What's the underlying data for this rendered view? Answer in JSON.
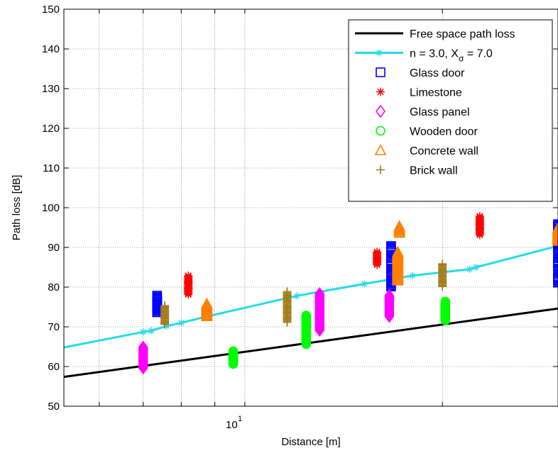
{
  "chart_data": {
    "type": "scatter",
    "xlabel": "Distance [m]",
    "ylabel": "Path loss [dB]",
    "x_scale": "log",
    "xlim": [
      5.3,
      30
    ],
    "ylim": [
      50,
      150
    ],
    "x_tick_label": {
      "base": "10",
      "exponent": "1",
      "value": 10
    },
    "y_ticks": [
      50,
      60,
      70,
      80,
      90,
      100,
      110,
      120,
      130,
      140,
      150
    ],
    "grid": true,
    "legend_position": "top-right",
    "lines": [
      {
        "name": "Free space path loss",
        "color": "#000000",
        "x": [
          5.3,
          30
        ],
        "y": [
          57.4,
          74.6
        ]
      },
      {
        "name_prefix": "n = 3.0,  X",
        "name_subscript": "σ",
        "name_suffix": " = 7.0",
        "color": "#27dbe8",
        "x": [
          5.3,
          7.0,
          7.2,
          7.6,
          8.0,
          8.7,
          12.0,
          15.2,
          18.0,
          22.0,
          22.5,
          30
        ],
        "y": [
          64.8,
          68.7,
          69.0,
          70.2,
          71.0,
          72.5,
          77.8,
          80.8,
          82.9,
          84.5,
          85.0,
          90.4
        ]
      }
    ],
    "series": [
      {
        "name": "Glass door",
        "marker": "square",
        "color": "#0000ff",
        "points": [
          [
            7.35,
            75.5
          ],
          [
            7.35,
            77.0
          ],
          [
            7.35,
            74.5
          ],
          [
            16.7,
            89.5
          ],
          [
            16.7,
            86.0
          ],
          [
            16.7,
            83.0
          ],
          [
            16.7,
            81.0
          ],
          [
            30.0,
            95.0
          ],
          [
            30.0,
            90.0
          ],
          [
            30.0,
            86.0
          ],
          [
            30.0,
            82.0
          ]
        ]
      },
      {
        "name": "Limestone",
        "marker": "asterisk",
        "color": "#ff0000",
        "points": [
          [
            8.2,
            79.0
          ],
          [
            8.2,
            80.5
          ],
          [
            8.2,
            82.0
          ],
          [
            15.9,
            86.5
          ],
          [
            15.9,
            88.0
          ],
          [
            22.8,
            94.0
          ],
          [
            22.8,
            95.5
          ],
          [
            22.8,
            97.0
          ]
        ]
      },
      {
        "name": "Glass panel",
        "marker": "diamond",
        "color": "#ff00ff",
        "points": [
          [
            7.0,
            60.5
          ],
          [
            7.0,
            62.0
          ],
          [
            7.0,
            64.0
          ],
          [
            13.0,
            70.0
          ],
          [
            13.0,
            72.0
          ],
          [
            13.0,
            74.0
          ],
          [
            13.0,
            76.0
          ],
          [
            13.0,
            77.5
          ],
          [
            16.6,
            73.5
          ],
          [
            16.6,
            75.5
          ],
          [
            16.6,
            77.0
          ]
        ]
      },
      {
        "name": "Wooden door",
        "marker": "circle",
        "color": "#00ff00",
        "points": [
          [
            9.6,
            61.5
          ],
          [
            9.6,
            63.0
          ],
          [
            12.4,
            66.5
          ],
          [
            12.4,
            68.5
          ],
          [
            12.4,
            70.5
          ],
          [
            12.4,
            72.0
          ],
          [
            20.2,
            72.5
          ],
          [
            20.2,
            74.0
          ],
          [
            20.2,
            75.5
          ]
        ]
      },
      {
        "name": "Concrete wall",
        "marker": "triangle",
        "color": "#ff8000",
        "points": [
          [
            8.75,
            73.5
          ],
          [
            8.75,
            75.0
          ],
          [
            17.1,
            82.5
          ],
          [
            17.1,
            84.5
          ],
          [
            17.1,
            86.5
          ],
          [
            17.1,
            88.0
          ],
          [
            17.2,
            94.5
          ],
          [
            30.0,
            92.5
          ],
          [
            30.0,
            94.0
          ]
        ]
      },
      {
        "name": "Brick wall",
        "marker": "plus",
        "color": "#a37b1a",
        "points": [
          [
            7.55,
            71.5
          ],
          [
            7.55,
            73.0
          ],
          [
            7.55,
            74.5
          ],
          [
            11.6,
            72.0
          ],
          [
            11.6,
            74.0
          ],
          [
            11.6,
            76.0
          ],
          [
            11.6,
            78.0
          ],
          [
            20.0,
            81.0
          ],
          [
            20.0,
            83.0
          ],
          [
            20.0,
            85.0
          ]
        ]
      }
    ]
  }
}
